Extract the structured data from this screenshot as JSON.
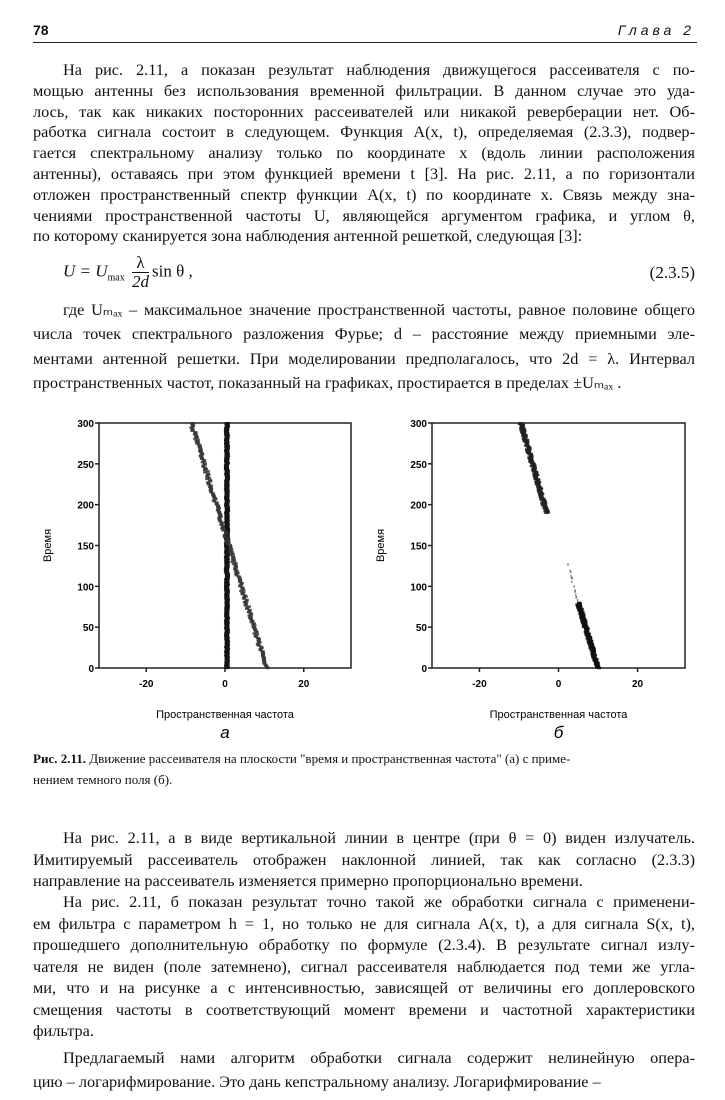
{
  "header": {
    "page_number": "78",
    "chapter": "Глава 2"
  },
  "paragraph1": [
    "На рис. 2.11, а показан результат наблюдения движущегося рассеивателя с по-",
    "мощью антенны без использования временной фильтрации. В данном случае это уда-",
    "лось, так как никаких посторонних рассеивателей или никакой реверберации нет. Об-",
    "работка сигнала состоит в следующем. Функция A(x, t), определяемая (2.3.3), подвер-",
    "гается спектральному анализу только по координате x (вдоль линии расположения",
    "антенны), оставаясь при этом функцией времени t [3]. На рис. 2.11, а по горизонтали",
    "отложен пространственный спектр функции A(x, t) по координате x. Связь между зна-",
    "чениями пространственной частоты U, являющейся аргументом графика, и углом θ,",
    "по которому сканируется зона наблюдения антенной решеткой, следующая [3]:"
  ],
  "formula": {
    "lhs": "U = U",
    "sub": "max",
    "num": "λ",
    "den": "2d",
    "rhs": "sin θ ,",
    "number": "(2.3.5)"
  },
  "paragraph2": [
    "где Uₘₐₓ – максимальное значение пространственной частоты, равное половине общего",
    "числа точек спектрального разложения Фурье; d – расстояние между приемными эле-",
    "ментами антенной решетки. При моделировании предполагалось, что 2d = λ. Интервал",
    "пространственных частот, показанный на графиках, простирается в пределах ±Uₘₐₓ ."
  ],
  "figure": {
    "caption_label": "Рис. 2.11.",
    "caption_lines": [
      "Движение рассеивателя на плоскости \"время и пространственная частота\" (а) с приме-",
      "нением темного поля (б)."
    ]
  },
  "chart_data": [
    {
      "type": "scatter",
      "panel_label": "а",
      "xlabel": "Пространственная частота",
      "ylabel": "Время",
      "xlim": [
        -32,
        32
      ],
      "ylim": [
        0,
        300
      ],
      "xticks": [
        "-20",
        "0",
        "20"
      ],
      "xtick_values": [
        -20,
        0,
        20
      ],
      "yticks": [
        "0",
        "50",
        "100",
        "150",
        "200",
        "250",
        "300"
      ],
      "ytick_values": [
        0,
        50,
        100,
        150,
        200,
        250,
        300
      ],
      "grid": false,
      "series": [
        {
          "kind": "emitter",
          "points": [
            [
              0.5,
              0
            ],
            [
              0.5,
              300
            ]
          ],
          "color": "#111111"
        },
        {
          "kind": "scatterer",
          "points": [
            [
              10.5,
              0
            ],
            [
              -8.5,
              300
            ]
          ],
          "color": "#333333"
        }
      ]
    },
    {
      "type": "scatter",
      "panel_label": "б",
      "xlabel": "Пространственная частота",
      "ylabel": "Время",
      "xlim": [
        -32,
        32
      ],
      "ylim": [
        0,
        300
      ],
      "xticks": [
        "-20",
        "0",
        "20"
      ],
      "xtick_values": [
        -20,
        0,
        20
      ],
      "yticks": [
        "0",
        "50",
        "100",
        "150",
        "200",
        "250",
        "300"
      ],
      "ytick_values": [
        0,
        50,
        100,
        150,
        200,
        250,
        300
      ],
      "grid": false,
      "series": [
        {
          "kind": "scatterer-lower",
          "points": [
            [
              10,
              0
            ],
            [
              5,
              80
            ]
          ],
          "color": "#111111"
        },
        {
          "kind": "scatterer-faint",
          "points": [
            [
              5,
              80
            ],
            [
              2,
              135
            ]
          ],
          "color": "#555555"
        },
        {
          "kind": "scatterer-upper",
          "points": [
            [
              -3,
              190
            ],
            [
              -9.5,
              300
            ]
          ],
          "color": "#222222"
        }
      ]
    }
  ],
  "paragraph3": [
    "На рис. 2.11, а в виде вертикальной линии в центре (при θ = 0) виден излучатель.",
    "Имитируемый рассеиватель отображен наклонной линией, так как согласно (2.3.3)",
    "направление на рассеиватель изменяется примерно пропорционально времени."
  ],
  "paragraph4": [
    "На рис. 2.11, б показан результат точно такой же обработки сигнала с применени-",
    "ем фильтра с параметром h = 1, но только не для сигнала A(x, t), а для сигнала S(x, t),",
    "прошедшего дополнительную обработку по формуле (2.3.4). В результате сигнал излу-",
    "чателя не виден (поле затемнено), сигнал рассеивателя наблюдается под теми же угла-",
    "ми, что и на рисунке а с интенсивностью, зависящей от величины его доплеровского",
    "смещения частоты в соответствующий момент времени и частотной характеристики",
    "фильтра."
  ],
  "paragraph5": [
    "Предлагаемый нами алгоритм обработки сигнала содержит нелинейную опера-",
    "цию – логарифмирование. Это дань кепстральному анализу. Логарифмирование –"
  ]
}
